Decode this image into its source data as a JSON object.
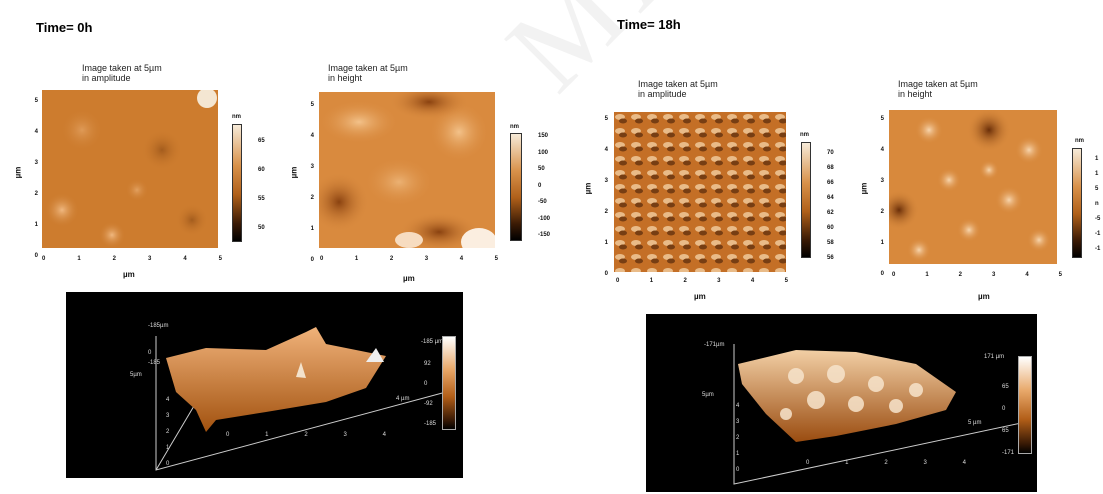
{
  "sections": [
    {
      "time": "Time= 0h"
    },
    {
      "time": "Time= 18h"
    }
  ],
  "panels": [
    {
      "caption1": "Image taken at 5µm",
      "caption2": "in amplitude",
      "unit": "nm",
      "cbticks": [
        "65",
        "60",
        "55",
        "50"
      ],
      "yaxis": "µm",
      "xaxis": "µm",
      "yticks": [
        "5",
        "4",
        "3",
        "2",
        "1",
        "0"
      ],
      "xticks": [
        "0",
        "1",
        "2",
        "3",
        "4",
        "5"
      ]
    },
    {
      "caption1": "Image taken at 5µm",
      "caption2": "in height",
      "unit": "nm",
      "cbticks": [
        "150",
        "100",
        "50",
        "0",
        "-50",
        "-100",
        "-150"
      ],
      "yaxis": "µm",
      "xaxis": "µm",
      "yticks": [
        "5",
        "4",
        "3",
        "2",
        "1",
        "0"
      ],
      "xticks": [
        "0",
        "1",
        "2",
        "3",
        "4",
        "5"
      ]
    },
    {
      "caption1": "Image taken at 5µm",
      "caption2": "in amplitude",
      "unit": "nm",
      "cbticks": [
        "70",
        "68",
        "66",
        "64",
        "62",
        "60",
        "58",
        "56"
      ],
      "yaxis": "µm",
      "xaxis": "µm",
      "yticks": [
        "5",
        "4",
        "3",
        "2",
        "1",
        "0"
      ],
      "xticks": [
        "0",
        "1",
        "2",
        "3",
        "4",
        "5"
      ]
    },
    {
      "caption1": "Image taken at 5µm",
      "caption2": "in height",
      "unit": "nm",
      "cbticks": [
        "1",
        "1",
        "5",
        "n",
        "-5",
        "-1",
        "-1"
      ],
      "yaxis": "µm",
      "xaxis": "µm",
      "yticks": [
        "5",
        "4",
        "3",
        "2",
        "1",
        "0"
      ],
      "xticks": [
        "0",
        "1",
        "2",
        "3",
        "4",
        "5"
      ]
    }
  ],
  "views3d": [
    {
      "zlabel": "-185µm",
      "zticks": [
        "0",
        "-185"
      ],
      "ylabel": "5µm",
      "yticks": [
        "4",
        "3",
        "2",
        "1",
        "0"
      ],
      "xlabel": "4 µm",
      "xticks": [
        "0",
        "1",
        "2",
        "3",
        "4"
      ],
      "cbtop": "-185 µm",
      "cbticks": [
        "92",
        "0",
        "-92",
        "-185"
      ]
    },
    {
      "zlabel": "-171µm",
      "zticks": [],
      "ylabel": "5µm",
      "yticks": [
        "4",
        "3",
        "2",
        "1",
        "0"
      ],
      "xlabel": "5 µm",
      "xticks": [
        "0",
        "1",
        "2",
        "3",
        "4"
      ],
      "cbtop": "171 µm",
      "cbticks": [
        "65",
        "0",
        "65",
        "-171"
      ]
    }
  ],
  "watermark": "MANUSCRI"
}
